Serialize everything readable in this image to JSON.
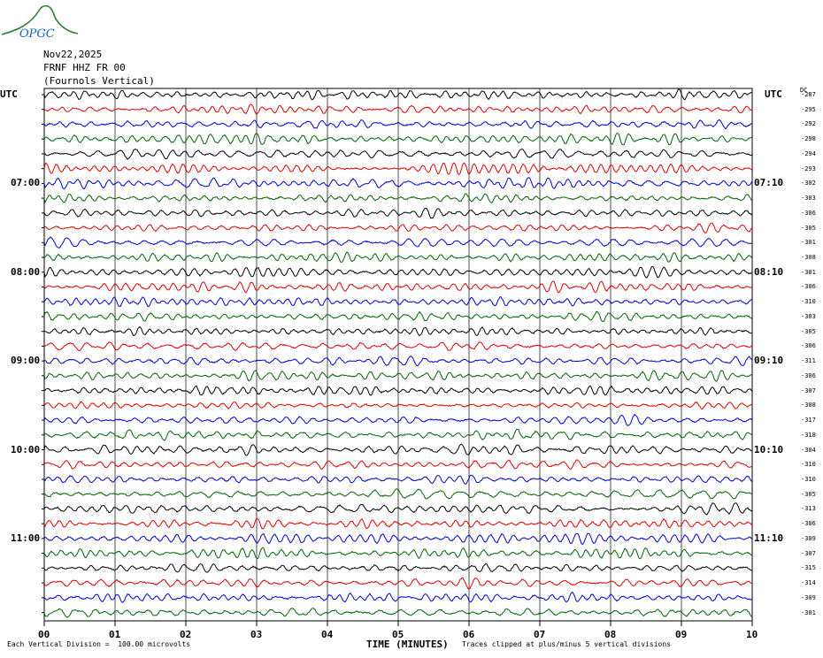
{
  "logo_text": "OPGC",
  "header": {
    "date": "Nov22,2025",
    "station": "FRNF HHZ FR 00",
    "location": "(Fournols Vertical)"
  },
  "left_axis_label": "UTC",
  "right_axis_label": "UTC",
  "dc_header": "DC",
  "footer": {
    "division": "Each Vertical Division =  100.00 microvolts",
    "clip": "Traces clipped at plus/minus 5 vertical divisions"
  },
  "chart_data": {
    "type": "line",
    "title": "",
    "xlabel": "TIME (MINUTES)",
    "ylabel": "",
    "xlim": [
      0,
      10
    ],
    "x_ticks": [
      "00",
      "01",
      "02",
      "03",
      "04",
      "05",
      "06",
      "07",
      "08",
      "09",
      "10"
    ],
    "grid": true,
    "trace_minutes": 10,
    "trace_colors": [
      "#000000",
      "#e00000",
      "#0000d0",
      "#006400"
    ],
    "left_time_labels": [
      {
        "row": 6,
        "label": "07:00"
      },
      {
        "row": 12,
        "label": "08:00"
      },
      {
        "row": 18,
        "label": "09:00"
      },
      {
        "row": 24,
        "label": "10:00"
      },
      {
        "row": 30,
        "label": "11:00"
      }
    ],
    "right_time_labels": [
      {
        "row": 6,
        "label": "07:10"
      },
      {
        "row": 12,
        "label": "08:10"
      },
      {
        "row": 18,
        "label": "09:10"
      },
      {
        "row": 24,
        "label": "10:10"
      },
      {
        "row": 30,
        "label": "11:10"
      }
    ],
    "dc_offsets": [
      "-287",
      "-295",
      "-292",
      "-298",
      "-294",
      "-293",
      "-302",
      "-303",
      "-306",
      "-305",
      "-301",
      "-308",
      "-301",
      "-306",
      "-310",
      "-303",
      "-305",
      "-306",
      "-311",
      "-306",
      "-307",
      "-308",
      "-317",
      "-318",
      "-304",
      "-310",
      "-310",
      "-305",
      "-313",
      "-306",
      "-309",
      "-307",
      "-315",
      "-314",
      "-309",
      "-301"
    ]
  }
}
